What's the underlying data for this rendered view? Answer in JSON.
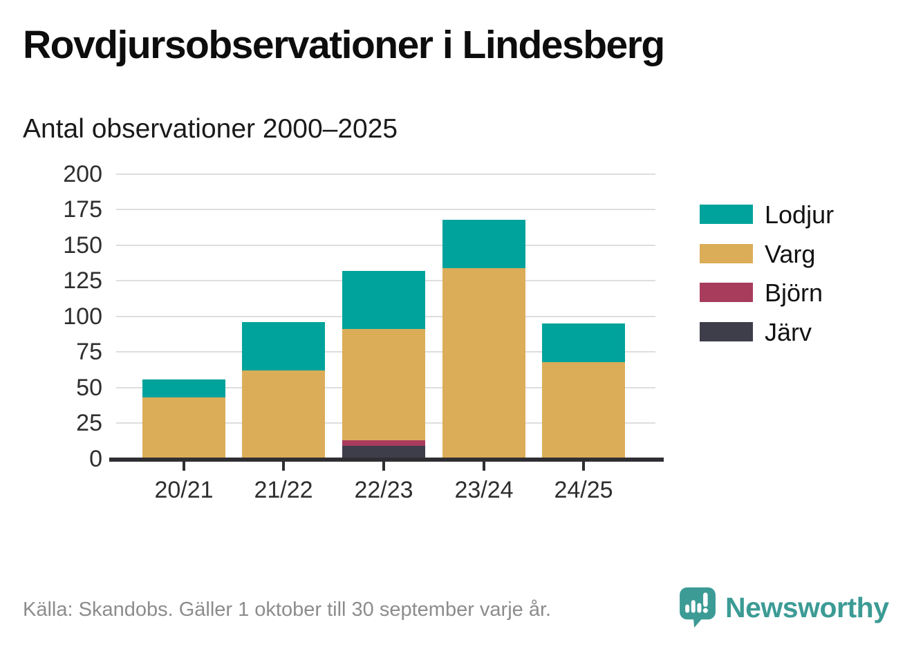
{
  "header": {
    "title": "Rovdjursobservationer i Lindesberg",
    "subtitle": "Antal observationer 2000–2025"
  },
  "chart_data": {
    "type": "bar",
    "stacked": true,
    "title": "Rovdjursobservationer i Lindesberg",
    "subtitle": "Antal observationer 2000–2025",
    "categories": [
      "20/21",
      "21/22",
      "22/23",
      "23/24",
      "24/25"
    ],
    "series": [
      {
        "name": "Lodjur",
        "color": "#00a39b",
        "values": [
          13,
          34,
          41,
          34,
          27
        ]
      },
      {
        "name": "Varg",
        "color": "#dbad58",
        "values": [
          42,
          62,
          78,
          133,
          68
        ]
      },
      {
        "name": "Björn",
        "color": "#a83c5d",
        "values": [
          1,
          0,
          4,
          1,
          0
        ]
      },
      {
        "name": "Järv",
        "color": "#3e3e4b",
        "values": [
          0,
          0,
          9,
          0,
          0
        ]
      }
    ],
    "stack_order_bottom_to_top": [
      "Järv",
      "Björn",
      "Varg",
      "Lodjur"
    ],
    "totals": [
      56,
      96,
      132,
      168,
      95
    ],
    "ylim": [
      0,
      200
    ],
    "yticks": [
      0,
      25,
      50,
      75,
      100,
      125,
      150,
      175,
      200
    ],
    "xlabel": "",
    "ylabel": "",
    "grid": true,
    "legend_position": "right"
  },
  "footer": {
    "source": "Källa: Skandobs. Gäller 1 oktober till 30 september varje år.",
    "brand": "Newsworthy"
  },
  "colors": {
    "axis": "#2f2f33",
    "grid": "#dedede",
    "brand_teal": "#3c9b95",
    "background": "#ffffff"
  }
}
